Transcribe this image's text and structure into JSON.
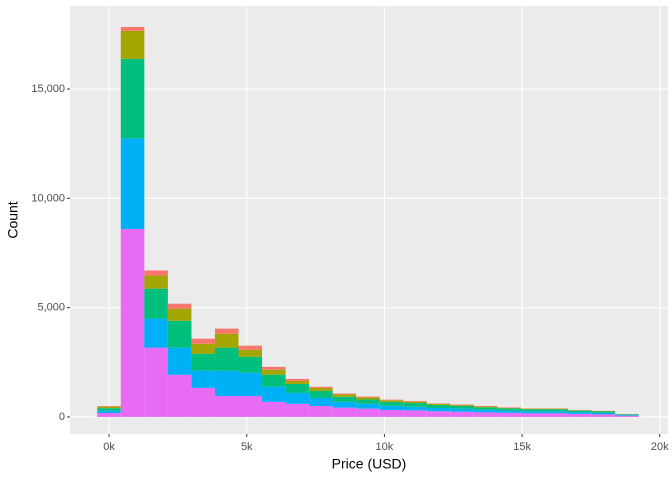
{
  "chart_data": {
    "type": "stacked-histogram",
    "x_label": "Price (USD)",
    "y_label": "Count",
    "bins": [
      -430,
      425,
      1280,
      2135,
      2990,
      3845,
      4700,
      5555,
      6410,
      7265,
      8120,
      8975,
      9830,
      10685,
      11540,
      12395,
      13250,
      14105,
      14960,
      15815,
      16670,
      17525,
      18380,
      19235
    ],
    "series": [
      {
        "color": "#E76BF3",
        "values": [
          180,
          8600,
          3170,
          1930,
          1330,
          960,
          960,
          690,
          600,
          500,
          430,
          380,
          320,
          300,
          260,
          240,
          210,
          190,
          170,
          170,
          140,
          120,
          60
        ]
      },
      {
        "color": "#00B0F6",
        "values": [
          110,
          4150,
          1330,
          1240,
          780,
          1150,
          1060,
          690,
          500,
          370,
          260,
          220,
          190,
          170,
          150,
          140,
          120,
          100,
          90,
          90,
          80,
          70,
          30
        ]
      },
      {
        "color": "#00BF7D",
        "values": [
          110,
          3630,
          1370,
          1230,
          780,
          1060,
          730,
          550,
          410,
          320,
          230,
          200,
          180,
          170,
          140,
          130,
          110,
          100,
          90,
          90,
          70,
          60,
          30
        ]
      },
      {
        "color": "#A3A500",
        "values": [
          70,
          1280,
          600,
          550,
          460,
          640,
          320,
          230,
          140,
          140,
          110,
          90,
          70,
          60,
          50,
          40,
          40,
          30,
          30,
          30,
          20,
          20,
          10
        ]
      },
      {
        "color": "#F8766D",
        "values": [
          30,
          180,
          230,
          230,
          230,
          230,
          190,
          130,
          90,
          50,
          40,
          40,
          30,
          30,
          20,
          20,
          20,
          20,
          10,
          10,
          10,
          10,
          5
        ]
      }
    ],
    "xlim": [
      -1420,
      20300
    ],
    "ylim": [
      -780,
      18800
    ],
    "xticks": [
      {
        "value": 0,
        "label": "0k"
      },
      {
        "value": 5000,
        "label": "5k"
      },
      {
        "value": 10000,
        "label": "10k"
      },
      {
        "value": 15000,
        "label": "15k"
      },
      {
        "value": 20000,
        "label": "20k"
      }
    ],
    "yticks": [
      0,
      {
        "value": 5000,
        "label": "5,000"
      },
      {
        "value": 10000,
        "label": "10,000"
      },
      {
        "value": 15000,
        "label": "15,000"
      }
    ],
    "grid": true
  }
}
